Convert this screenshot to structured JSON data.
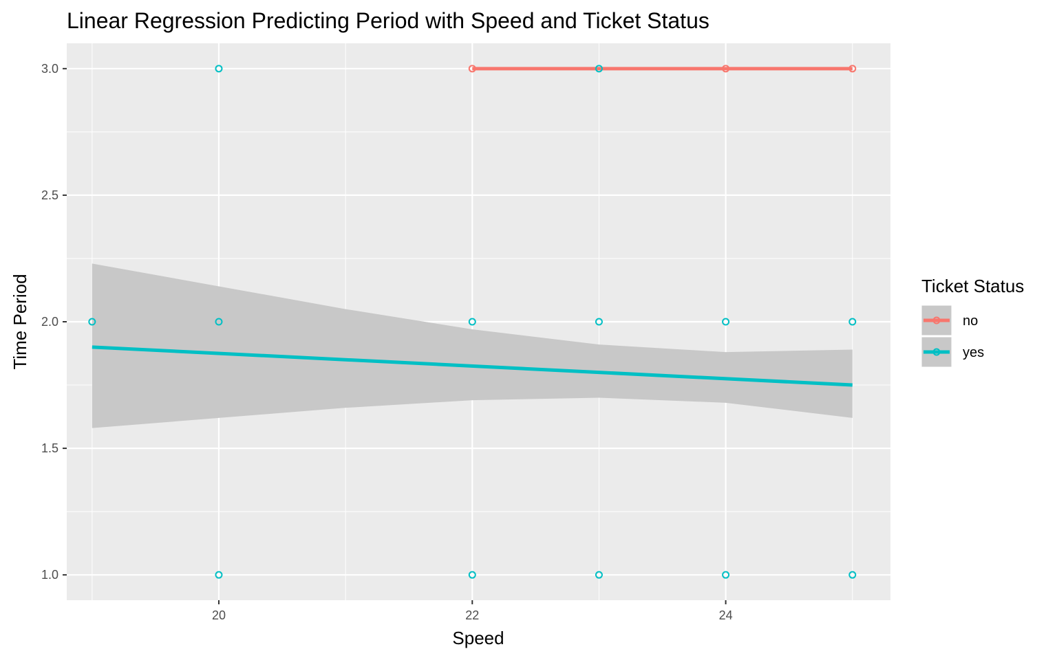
{
  "chart_data": {
    "type": "scatter",
    "title": "Linear Regression Predicting Period with Speed and Ticket Status",
    "xlabel": "Speed",
    "ylabel": "Time Period",
    "xlim": [
      18.8,
      25.3
    ],
    "ylim": [
      0.9,
      3.1
    ],
    "x_ticks": [
      20,
      22,
      24
    ],
    "x_tick_labels": [
      "20",
      "22",
      "24"
    ],
    "y_ticks": [
      1.0,
      1.5,
      2.0,
      2.5,
      3.0
    ],
    "y_tick_labels": [
      "1.0",
      "1.5",
      "2.0",
      "2.5",
      "3.0"
    ],
    "grid": true,
    "panel_background": "#ebebeb",
    "legend": {
      "title": "Ticket Status",
      "position": "right",
      "entries": [
        "no",
        "yes"
      ]
    },
    "series": [
      {
        "name": "no",
        "color": "#f8766d",
        "points": [
          {
            "x": 22,
            "y": 3
          },
          {
            "x": 24,
            "y": 3
          },
          {
            "x": 25,
            "y": 3
          }
        ],
        "fit": [
          {
            "x": 22,
            "y": 3.0
          },
          {
            "x": 25,
            "y": 3.0
          }
        ]
      },
      {
        "name": "yes",
        "color": "#00bfc4",
        "points": [
          {
            "x": 19,
            "y": 2
          },
          {
            "x": 20,
            "y": 3
          },
          {
            "x": 20,
            "y": 2
          },
          {
            "x": 20,
            "y": 1
          },
          {
            "x": 22,
            "y": 2
          },
          {
            "x": 22,
            "y": 1
          },
          {
            "x": 23,
            "y": 3
          },
          {
            "x": 23,
            "y": 2
          },
          {
            "x": 23,
            "y": 1
          },
          {
            "x": 24,
            "y": 2
          },
          {
            "x": 24,
            "y": 1
          },
          {
            "x": 25,
            "y": 2
          },
          {
            "x": 25,
            "y": 1
          }
        ],
        "fit": [
          {
            "x": 19,
            "y": 1.9
          },
          {
            "x": 25,
            "y": 1.75
          }
        ],
        "confidence_band": {
          "color": "#c8c8c8",
          "upper": [
            {
              "x": 19,
              "y": 2.23
            },
            {
              "x": 20,
              "y": 2.14
            },
            {
              "x": 21,
              "y": 2.05
            },
            {
              "x": 22,
              "y": 1.97
            },
            {
              "x": 23,
              "y": 1.91
            },
            {
              "x": 24,
              "y": 1.88
            },
            {
              "x": 25,
              "y": 1.89
            }
          ],
          "lower": [
            {
              "x": 19,
              "y": 1.58
            },
            {
              "x": 20,
              "y": 1.62
            },
            {
              "x": 21,
              "y": 1.66
            },
            {
              "x": 22,
              "y": 1.69
            },
            {
              "x": 23,
              "y": 1.7
            },
            {
              "x": 24,
              "y": 1.68
            },
            {
              "x": 25,
              "y": 1.62
            }
          ]
        }
      }
    ]
  }
}
